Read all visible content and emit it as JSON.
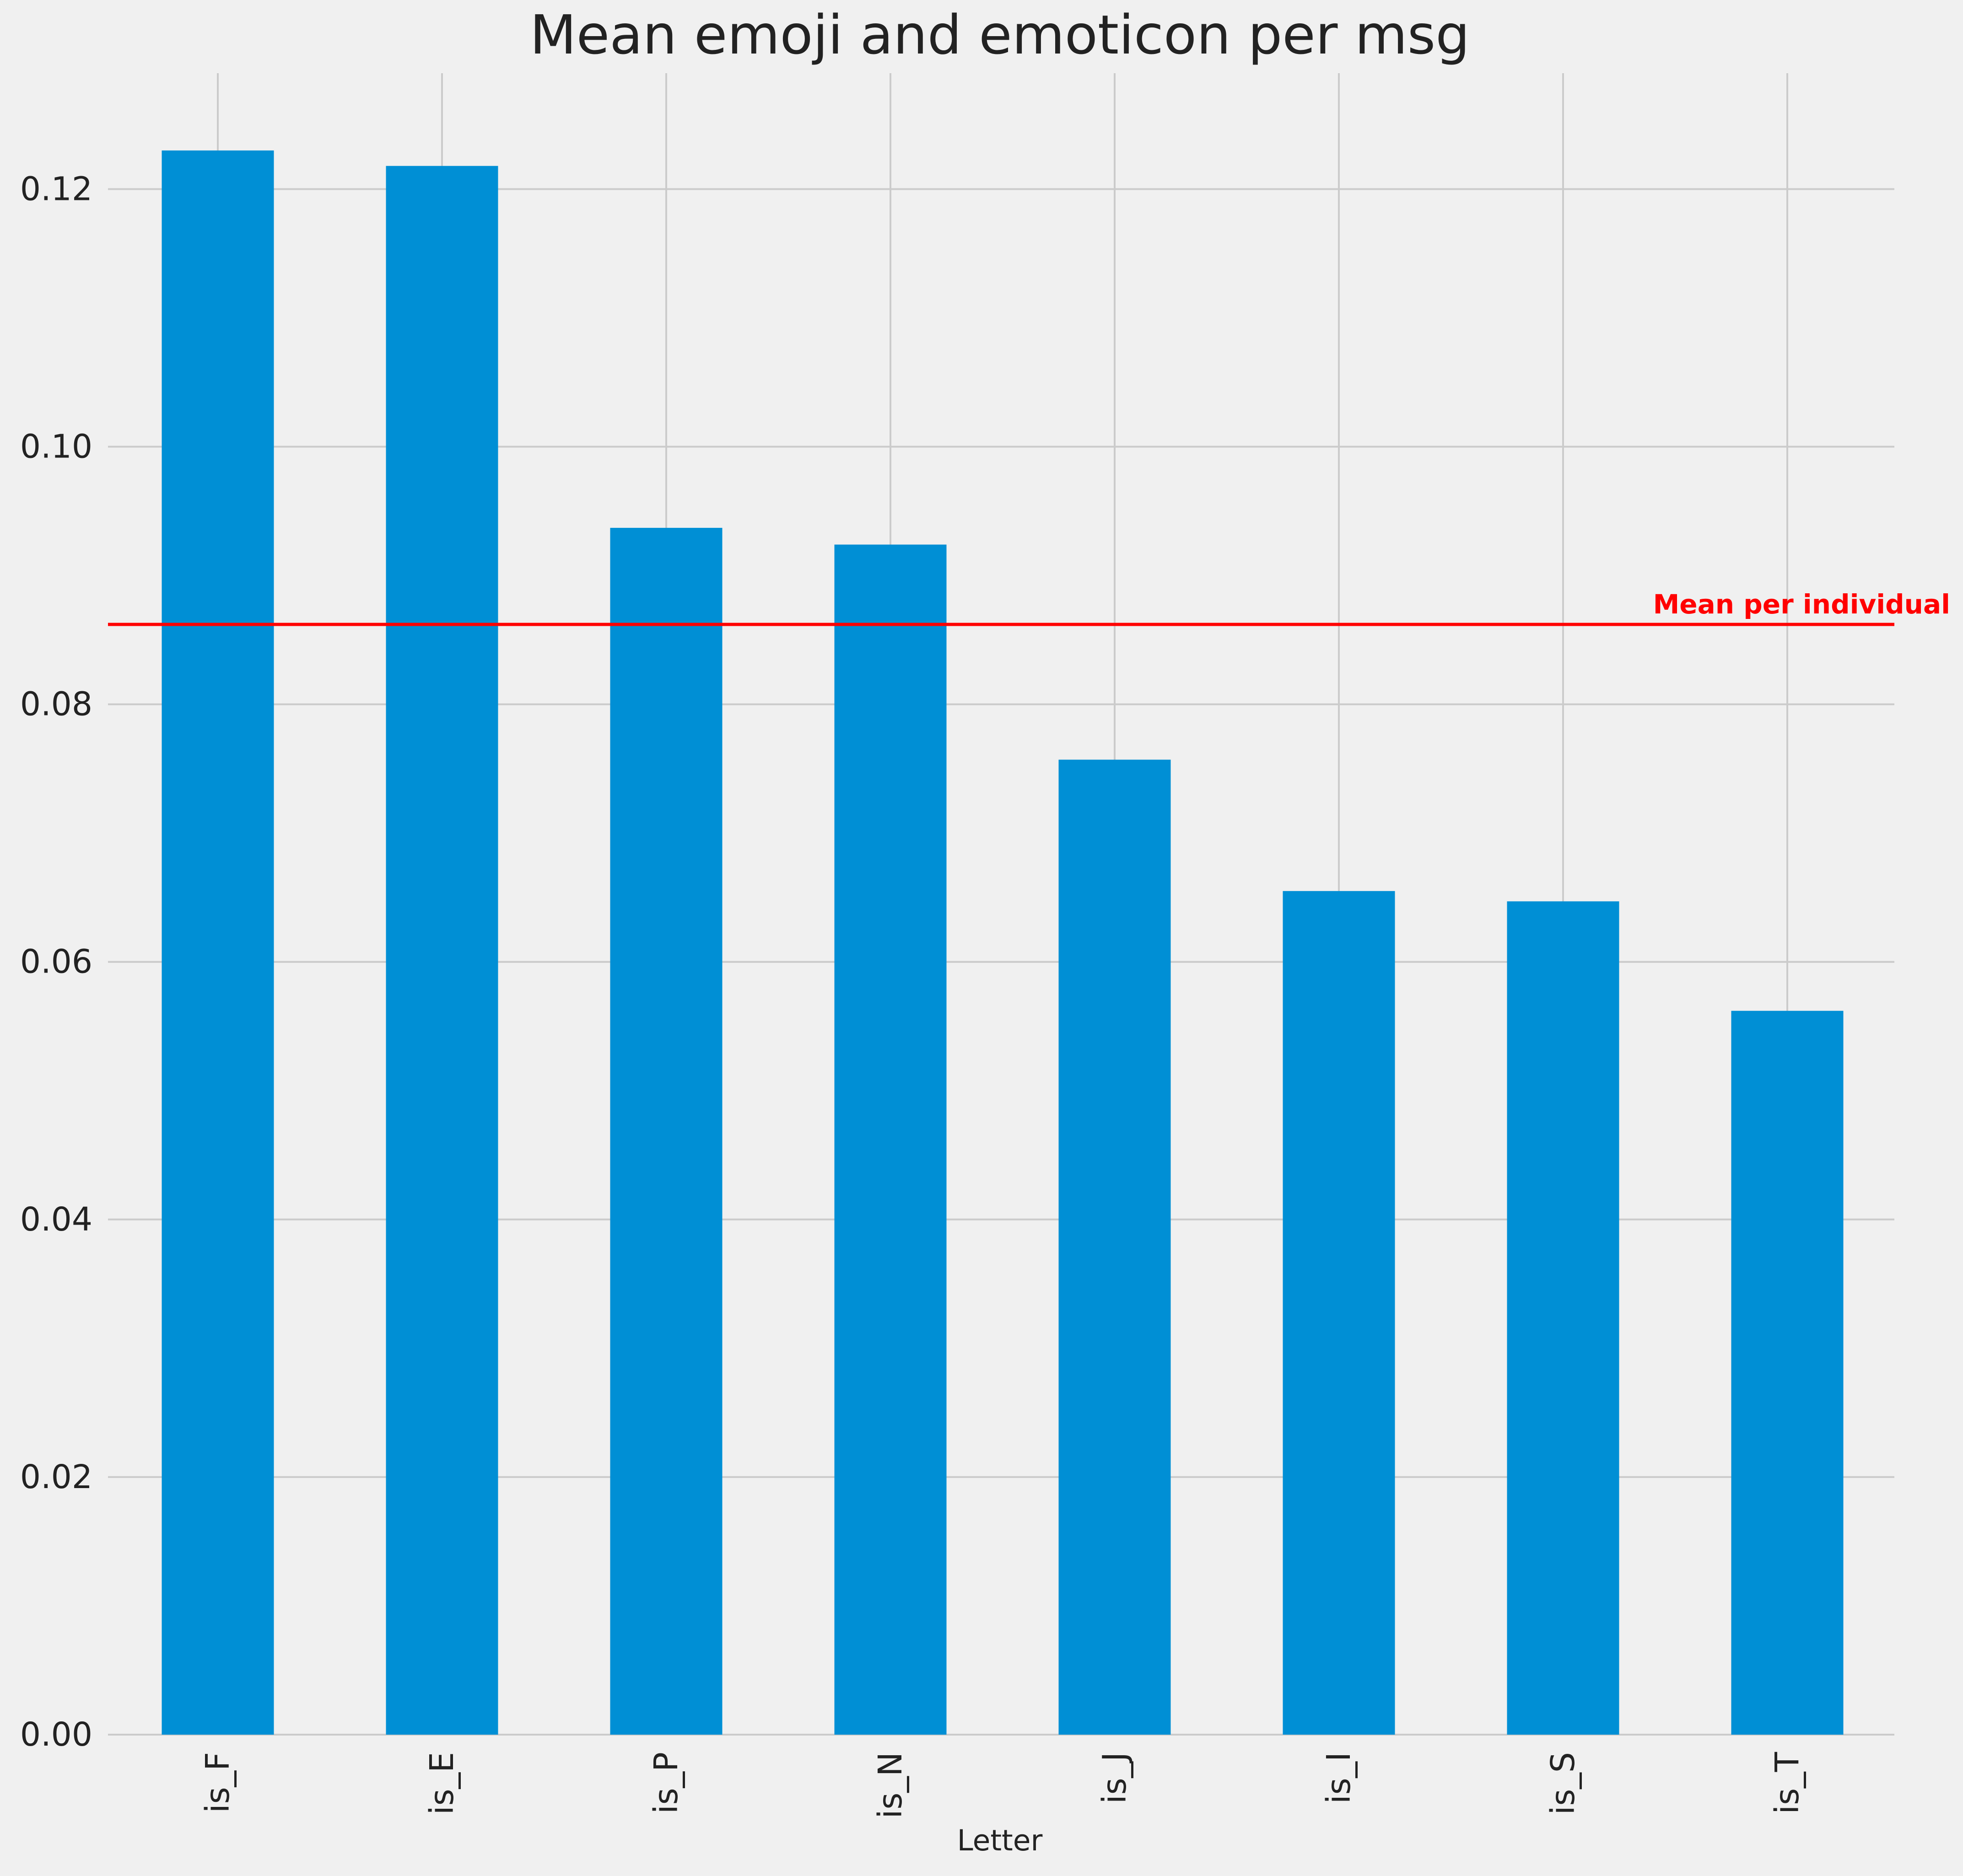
{
  "chart_data": {
    "type": "bar",
    "title": "Mean emoji and emoticon per msg",
    "xlabel": "Letter",
    "ylabel": "",
    "categories": [
      "is_F",
      "is_E",
      "is_P",
      "is_N",
      "is_J",
      "is_I",
      "is_S",
      "is_T"
    ],
    "values": [
      0.123,
      0.1218,
      0.0937,
      0.0924,
      0.0757,
      0.0655,
      0.0647,
      0.0562
    ],
    "ylim": [
      0,
      0.129
    ],
    "yticks": [
      0.0,
      0.02,
      0.04,
      0.06,
      0.08,
      0.1,
      0.12
    ],
    "ytick_labels": [
      "0.00",
      "0.02",
      "0.04",
      "0.06",
      "0.08",
      "0.10",
      "0.12"
    ],
    "grid": true,
    "bar_color": "#008fd5",
    "reference_line": {
      "value": 0.0862,
      "label": "Mean per individual",
      "color": "#ff0000"
    },
    "background_color": "#f0f0f0",
    "grid_color": "#cbcbcb"
  }
}
